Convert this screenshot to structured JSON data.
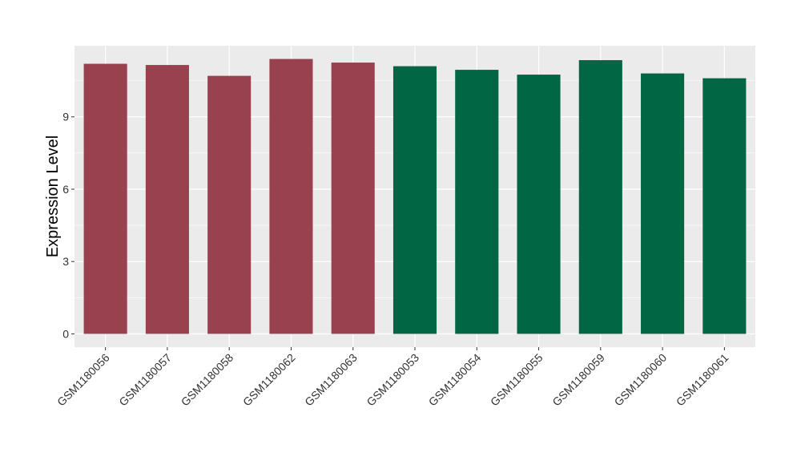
{
  "chart_data": {
    "type": "bar",
    "categories": [
      "GSM1180056",
      "GSM1180057",
      "GSM1180058",
      "GSM1180062",
      "GSM1180063",
      "GSM1180053",
      "GSM1180054",
      "GSM1180055",
      "GSM1180059",
      "GSM1180060",
      "GSM1180061"
    ],
    "values": [
      11.2,
      11.15,
      10.7,
      11.4,
      11.25,
      11.1,
      10.95,
      10.75,
      11.35,
      10.8,
      10.6
    ],
    "bar_colors": [
      "#99414e",
      "#99414e",
      "#99414e",
      "#99414e",
      "#99414e",
      "#006644",
      "#006644",
      "#006644",
      "#006644",
      "#006644",
      "#006644"
    ],
    "title": "",
    "xlabel": "",
    "ylabel": "Expression Level",
    "ylim": [
      -0.55,
      11.95
    ],
    "yticks": [
      0,
      3,
      6,
      9
    ],
    "ytick_labels": [
      "0",
      "3",
      "6",
      "9"
    ],
    "grid": true,
    "legend": "none",
    "panel_background": "#ebebeb",
    "gridline_color": "#ffffff"
  }
}
